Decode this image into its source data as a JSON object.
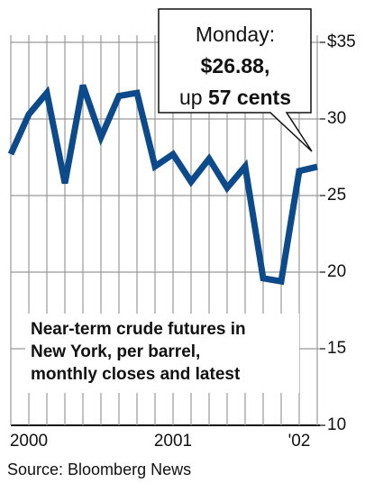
{
  "chart_data": {
    "type": "line",
    "categories": [
      null,
      "2000",
      null,
      null,
      null,
      null,
      null,
      null,
      null,
      "2001",
      null,
      null,
      null,
      null,
      null,
      null,
      "'02",
      null
    ],
    "series": [
      {
        "color": "#0d4a8c",
        "values": [
          27.7,
          30.3,
          31.7,
          25.8,
          32.2,
          28.8,
          31.5,
          31.7,
          26.9,
          27.7,
          25.9,
          27.4,
          25.5,
          26.9,
          19.6,
          19.4,
          26.6,
          26.88
        ]
      }
    ],
    "ylim": [
      10,
      35
    ],
    "yticks": [
      10,
      15,
      20,
      25,
      30,
      {
        "value": 35,
        "label": "$35"
      }
    ],
    "grid": true,
    "callout": {
      "line1": "Monday:",
      "line2": "$26.88,",
      "line3a": "up",
      "line3b": "57 cents"
    },
    "note": [
      "Near-term crude futures in",
      "New York, per barrel,",
      "monthly closes and latest"
    ],
    "source": "Source: Bloomberg News"
  }
}
